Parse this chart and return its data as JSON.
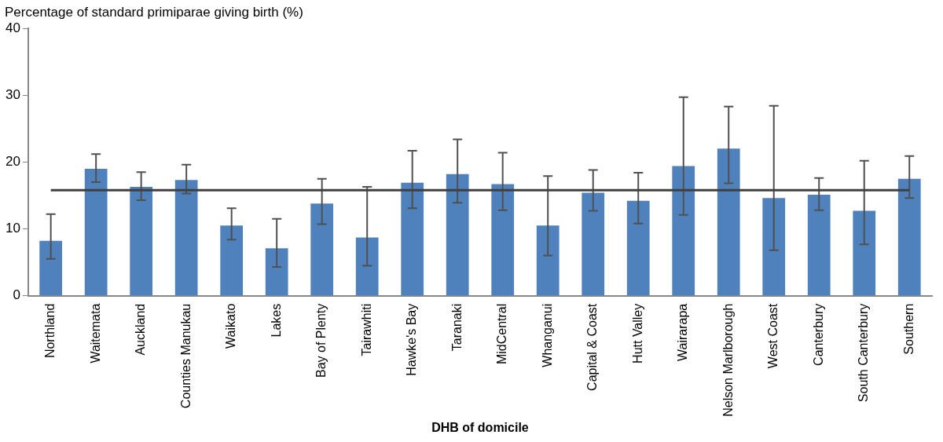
{
  "chart_data": {
    "type": "bar",
    "ylabel": "Percentage of standard primiparae giving birth (%)",
    "xlabel": "DHB of domicile",
    "categories": [
      "Northland",
      "Waitemata",
      "Auckland",
      "Counties Manukau",
      "Waikato",
      "Lakes",
      "Bay of Plenty",
      "Tairawhiti",
      "Hawke's Bay",
      "Taranaki",
      "MidCentral",
      "Whanganui",
      "Capital & Coast",
      "Hutt Valley",
      "Wairarapa",
      "Nelson Marlborough",
      "West Coast",
      "Canterbury",
      "South Canterbury",
      "Southern"
    ],
    "values": [
      8.2,
      19.0,
      16.3,
      17.3,
      10.5,
      7.1,
      13.8,
      8.7,
      16.9,
      18.2,
      16.7,
      10.5,
      15.4,
      14.2,
      19.4,
      22.0,
      14.6,
      15.1,
      12.7,
      17.5
    ],
    "errors": [
      [
        5.5,
        12.2
      ],
      [
        17.0,
        21.2
      ],
      [
        14.3,
        18.5
      ],
      [
        15.3,
        19.6
      ],
      [
        8.4,
        13.1
      ],
      [
        4.3,
        11.5
      ],
      [
        10.7,
        17.5
      ],
      [
        4.5,
        16.3
      ],
      [
        13.1,
        21.7
      ],
      [
        13.9,
        23.4
      ],
      [
        12.8,
        21.4
      ],
      [
        6.0,
        17.9
      ],
      [
        12.7,
        18.8
      ],
      [
        10.8,
        18.4
      ],
      [
        12.1,
        29.7
      ],
      [
        16.8,
        28.3
      ],
      [
        6.8,
        28.4
      ],
      [
        12.8,
        17.6
      ],
      [
        7.7,
        20.2
      ],
      [
        14.6,
        20.9
      ]
    ],
    "color": "#4f81bd",
    "ylim": [
      0,
      40
    ],
    "yticks": [
      0,
      10,
      20,
      30,
      40
    ],
    "grid": false,
    "legend": false,
    "ref_lines": [
      {
        "axis": "y",
        "value": 15.8,
        "color": "#404040"
      }
    ]
  }
}
